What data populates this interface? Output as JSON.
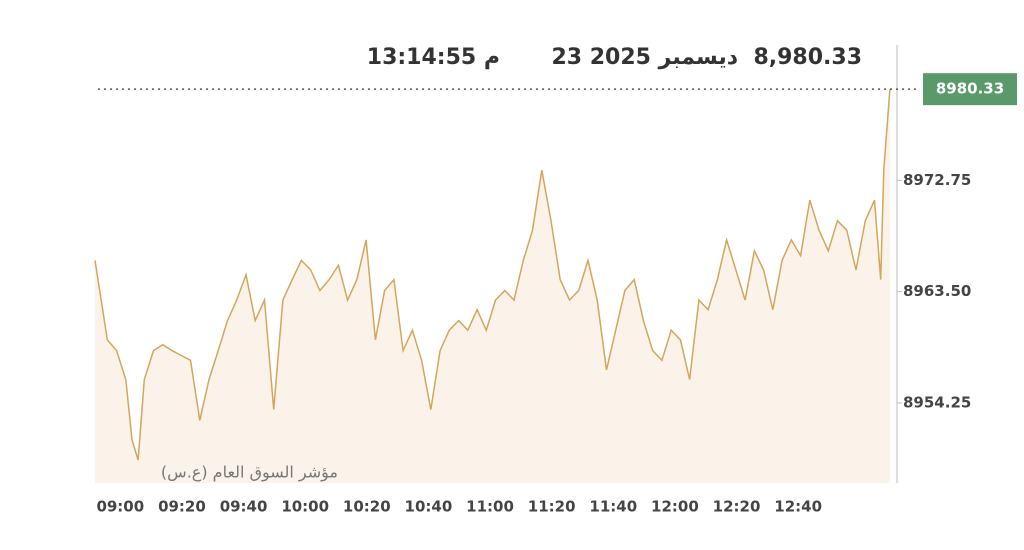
{
  "chart_data": {
    "type": "area",
    "header": {
      "price": "8,980.33",
      "date": "23 ديسمبر 2025",
      "time": "13:14:55 م"
    },
    "x": [
      "08:56",
      "08:58",
      "09:00",
      "09:03",
      "09:06",
      "09:08",
      "09:10",
      "09:12",
      "09:15",
      "09:18",
      "09:21",
      "09:24",
      "09:27",
      "09:30",
      "09:33",
      "09:36",
      "09:39",
      "09:42",
      "09:45",
      "09:48",
      "09:51",
      "09:54",
      "09:57",
      "10:00",
      "10:03",
      "10:06",
      "10:09",
      "10:12",
      "10:15",
      "10:18",
      "10:21",
      "10:24",
      "10:27",
      "10:30",
      "10:33",
      "10:36",
      "10:39",
      "10:42",
      "10:45",
      "10:48",
      "10:51",
      "10:54",
      "10:57",
      "11:00",
      "11:03",
      "11:06",
      "11:09",
      "11:12",
      "11:15",
      "11:18",
      "11:21",
      "11:24",
      "11:27",
      "11:30",
      "11:33",
      "11:36",
      "11:39",
      "11:42",
      "11:45",
      "11:48",
      "11:51",
      "11:54",
      "11:57",
      "12:00",
      "12:03",
      "12:06",
      "12:09",
      "12:12",
      "12:15",
      "12:18",
      "12:21",
      "12:24",
      "12:27",
      "12:30",
      "12:33",
      "12:36",
      "12:39",
      "12:42",
      "12:45",
      "12:48",
      "12:51",
      "12:54",
      "12:57",
      "13:00",
      "13:03",
      "13:06",
      "13:09",
      "13:11",
      "13:12",
      "13:14"
    ],
    "series": [
      {
        "name": "مؤشر السوق العام (ع.س)",
        "color": "#d4a55a",
        "fill": "#fbf3ea",
        "values": [
          8966.1,
          8962.8,
          8959.5,
          8958.6,
          8956.2,
          8951.2,
          8949.5,
          8956.2,
          8958.6,
          8959.1,
          8958.6,
          8958.2,
          8957.8,
          8952.8,
          8956.2,
          8958.6,
          8961.1,
          8962.8,
          8964.9,
          8961.1,
          8962.8,
          8953.7,
          8962.8,
          8964.5,
          8966.1,
          8965.3,
          8963.6,
          8964.5,
          8965.7,
          8962.8,
          8964.5,
          8967.8,
          8959.5,
          8963.6,
          8964.5,
          8958.6,
          8960.3,
          8957.8,
          8953.7,
          8958.6,
          8960.3,
          8961.1,
          8960.3,
          8962.0,
          8960.3,
          8962.8,
          8963.6,
          8962.8,
          8966.1,
          8968.6,
          8973.6,
          8969.4,
          8964.5,
          8962.8,
          8963.6,
          8966.1,
          8962.8,
          8957.0,
          8960.3,
          8963.6,
          8964.5,
          8961.1,
          8958.6,
          8957.8,
          8960.3,
          8959.5,
          8956.2,
          8962.8,
          8962.0,
          8964.5,
          8967.8,
          8965.3,
          8962.8,
          8966.9,
          8965.3,
          8962.0,
          8966.1,
          8967.8,
          8966.5,
          8971.1,
          8968.6,
          8966.9,
          8969.4,
          8968.6,
          8965.3,
          8969.4,
          8971.1,
          8964.5,
          8973.6,
          8980.33
        ]
      }
    ],
    "last_value": 8980.33,
    "xlim": [
      "08:56",
      "13:15"
    ],
    "xticks": [
      "09:00",
      "09:20",
      "09:40",
      "10:00",
      "10:20",
      "10:40",
      "11:00",
      "11:20",
      "11:40",
      "12:00",
      "12:20",
      "12:40"
    ],
    "ylim": [
      8947.6,
      8984
    ],
    "yticks": [
      8972.75,
      {
        "value": 8963.5,
        "label": "8963.50"
      },
      8954.25
    ]
  }
}
